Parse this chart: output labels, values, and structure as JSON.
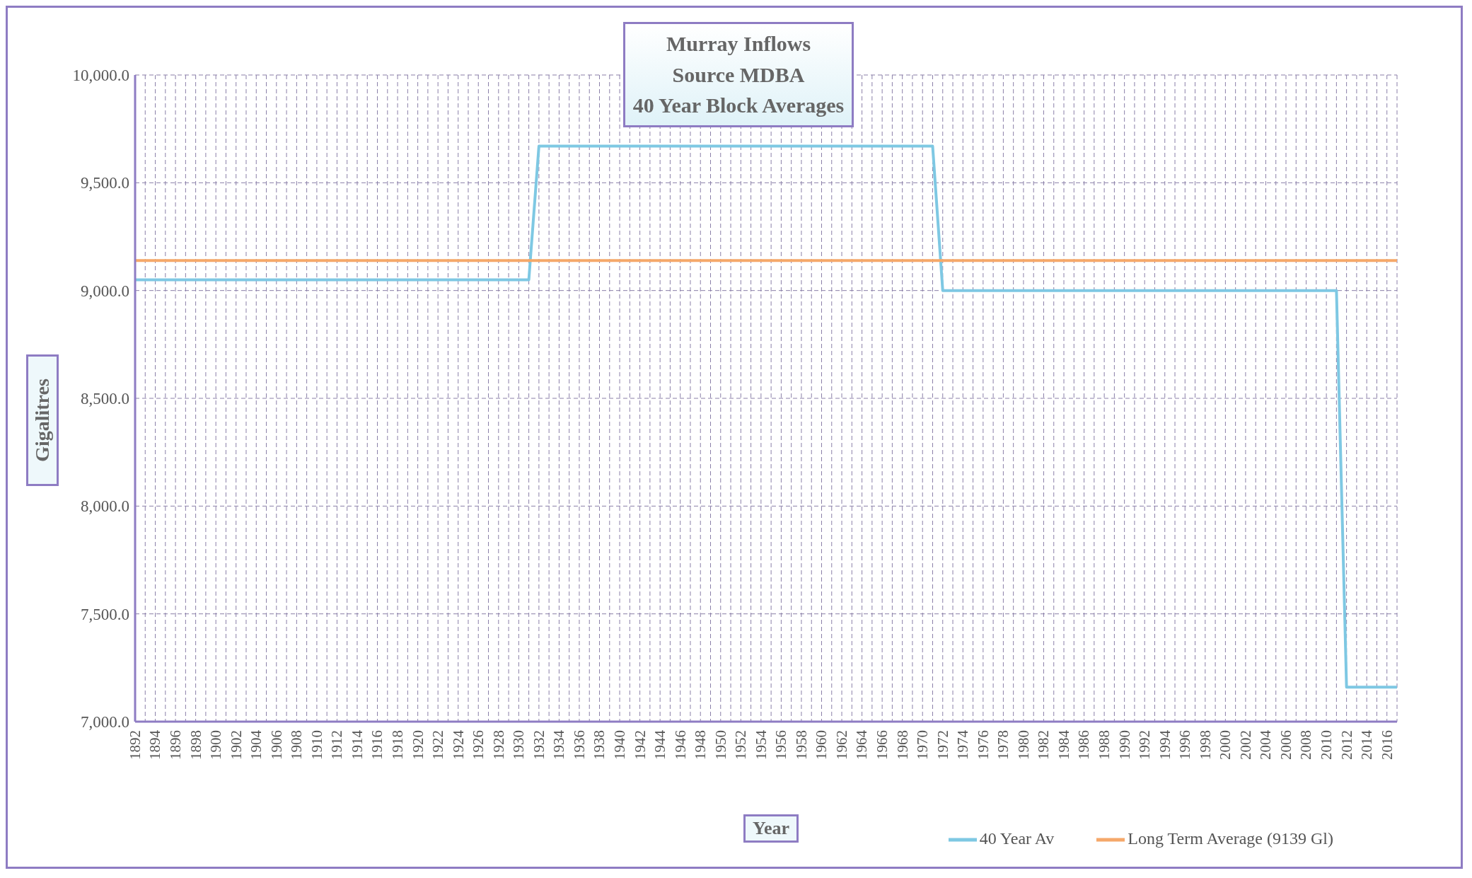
{
  "chart_data": {
    "type": "line",
    "title": "Murray Inflows\nSource MDBA\n40 Year Block Averages",
    "xlabel": "Year",
    "ylabel": "Gigalitres",
    "categories": [
      "1892",
      null,
      "1894",
      null,
      "1896",
      null,
      "1898",
      null,
      "1900",
      null,
      "1902",
      null,
      "1904",
      null,
      "1906",
      null,
      "1908",
      null,
      "1910",
      null,
      "1912",
      null,
      "1914",
      null,
      "1916",
      null,
      "1918",
      null,
      "1920",
      null,
      "1922",
      null,
      "1924",
      null,
      "1926",
      null,
      "1928",
      null,
      "1930",
      null,
      "1932",
      null,
      "1934",
      null,
      "1936",
      null,
      "1938",
      null,
      "1940",
      null,
      "1942",
      null,
      "1944",
      null,
      "1946",
      null,
      "1948",
      null,
      "1950",
      null,
      "1952",
      null,
      "1954",
      null,
      "1956",
      null,
      "1958",
      null,
      "1960",
      null,
      "1962",
      null,
      "1964",
      null,
      "1966",
      null,
      "1968",
      null,
      "1970",
      null,
      "1972",
      null,
      "1974",
      null,
      "1976",
      null,
      "1978",
      null,
      "1980",
      null,
      "1982",
      null,
      "1984",
      null,
      "1986",
      null,
      "1988",
      null,
      "1990",
      null,
      "1992",
      null,
      "1994",
      null,
      "1996",
      null,
      "1998",
      null,
      "2000",
      null,
      "2002",
      null,
      "2004",
      null,
      "2006",
      null,
      "2008",
      null,
      "2010",
      null,
      "2012",
      null,
      "2014",
      null,
      "2016",
      null
    ],
    "series": [
      {
        "name": "40 Year Av",
        "color": "#7ec8e3",
        "values": [
          9050,
          9050,
          9050,
          9050,
          9050,
          9050,
          9050,
          9050,
          9050,
          9050,
          9050,
          9050,
          9050,
          9050,
          9050,
          9050,
          9050,
          9050,
          9050,
          9050,
          9050,
          9050,
          9050,
          9050,
          9050,
          9050,
          9050,
          9050,
          9050,
          9050,
          9050,
          9050,
          9050,
          9050,
          9050,
          9050,
          9050,
          9050,
          9050,
          9050,
          9670,
          9670,
          9670,
          9670,
          9670,
          9670,
          9670,
          9670,
          9670,
          9670,
          9670,
          9670,
          9670,
          9670,
          9670,
          9670,
          9670,
          9670,
          9670,
          9670,
          9670,
          9670,
          9670,
          9670,
          9670,
          9670,
          9670,
          9670,
          9670,
          9670,
          9670,
          9670,
          9670,
          9670,
          9670,
          9670,
          9670,
          9670,
          9670,
          9670,
          9000,
          9000,
          9000,
          9000,
          9000,
          9000,
          9000,
          9000,
          9000,
          9000,
          9000,
          9000,
          9000,
          9000,
          9000,
          9000,
          9000,
          9000,
          9000,
          9000,
          9000,
          9000,
          9000,
          9000,
          9000,
          9000,
          9000,
          9000,
          9000,
          9000,
          9000,
          9000,
          9000,
          9000,
          9000,
          9000,
          9000,
          9000,
          9000,
          9000,
          7160,
          7160,
          7160,
          7160,
          7160,
          7160
        ]
      },
      {
        "name": "Long Term Average (9139 Gl)",
        "color": "#f5a86a",
        "values": [
          9139,
          9139,
          9139,
          9139,
          9139,
          9139,
          9139,
          9139,
          9139,
          9139,
          9139,
          9139,
          9139,
          9139,
          9139,
          9139,
          9139,
          9139,
          9139,
          9139,
          9139,
          9139,
          9139,
          9139,
          9139,
          9139,
          9139,
          9139,
          9139,
          9139,
          9139,
          9139,
          9139,
          9139,
          9139,
          9139,
          9139,
          9139,
          9139,
          9139,
          9139,
          9139,
          9139,
          9139,
          9139,
          9139,
          9139,
          9139,
          9139,
          9139,
          9139,
          9139,
          9139,
          9139,
          9139,
          9139,
          9139,
          9139,
          9139,
          9139,
          9139,
          9139,
          9139,
          9139,
          9139,
          9139,
          9139,
          9139,
          9139,
          9139,
          9139,
          9139,
          9139,
          9139,
          9139,
          9139,
          9139,
          9139,
          9139,
          9139,
          9139,
          9139,
          9139,
          9139,
          9139,
          9139,
          9139,
          9139,
          9139,
          9139,
          9139,
          9139,
          9139,
          9139,
          9139,
          9139,
          9139,
          9139,
          9139,
          9139,
          9139,
          9139,
          9139,
          9139,
          9139,
          9139,
          9139,
          9139,
          9139,
          9139,
          9139,
          9139,
          9139,
          9139,
          9139,
          9139,
          9139,
          9139,
          9139,
          9139,
          9139,
          9139,
          9139,
          9139,
          9139,
          9139
        ]
      }
    ],
    "ylim": [
      7000,
      10000
    ],
    "yticks": [
      {
        "value": 7000,
        "label": "7,000.0"
      },
      {
        "value": 7500,
        "label": "7,500.0"
      },
      {
        "value": 8000,
        "label": "8,000.0"
      },
      {
        "value": 8500,
        "label": "8,500.0"
      },
      {
        "value": 9000,
        "label": "9,000.0"
      },
      {
        "value": 9500,
        "label": "9,500.0"
      },
      {
        "value": 10000,
        "label": "10,000.0"
      }
    ],
    "grid": true,
    "legend": "bottom right",
    "marker": "none",
    "line_style": "solid"
  }
}
